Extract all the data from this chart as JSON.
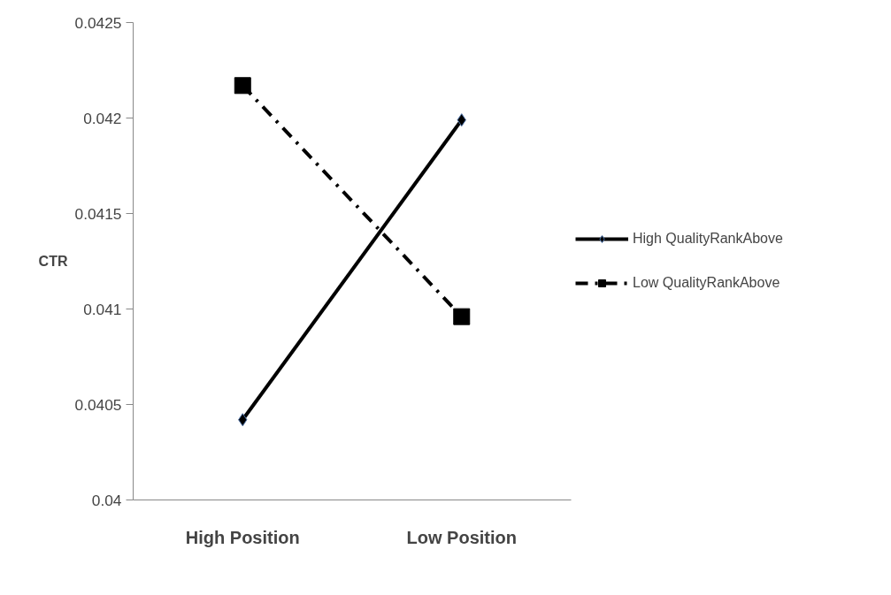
{
  "chart_data": {
    "type": "line",
    "ylabel": "CTR",
    "categories": [
      "High Position",
      "Low Position"
    ],
    "series": [
      {
        "name": "High QualityRankAbove",
        "color": "#000000",
        "values": [
          0.04042,
          0.04199
        ],
        "marker": "diamond",
        "line_style": "solid"
      },
      {
        "name": "Low QualityRankAbove",
        "color": "#000000",
        "values": [
          0.04217,
          0.04096
        ],
        "marker": "square",
        "line_style": "dashdot"
      }
    ],
    "ylim": [
      0.04,
      0.0425
    ],
    "yticks": [
      0.04,
      0.0405,
      0.041,
      0.0415,
      0.042,
      0.0425
    ],
    "grid": false,
    "legend": "right"
  }
}
